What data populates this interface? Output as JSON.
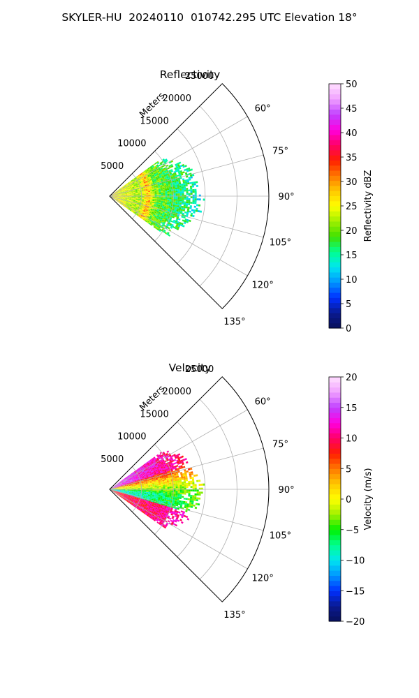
{
  "figure_title": "SKYLER-HU  20240110  010742.295 UTC Elevation 18°",
  "chart_data": [
    {
      "type": "heatmap",
      "subtype": "polar-sector",
      "title": "Reflectivity",
      "radial_axis_label": "Meters",
      "radial_ticks": [
        5000,
        10000,
        15000,
        20000,
        25000
      ],
      "radial_tick_labels": [
        "5000",
        "10000",
        "15000",
        "20000",
        "25000"
      ],
      "radial_range": [
        0,
        25000
      ],
      "angle_range_deg": [
        45,
        135
      ],
      "angle_ticks": [
        60,
        75,
        90,
        105,
        120,
        135
      ],
      "angle_tick_labels": [
        "60°",
        "75°",
        "90°",
        "105°",
        "120°",
        "135°"
      ],
      "grid": true,
      "data_extent": {
        "azimuth_deg": [
          54,
          125
        ],
        "range_m": [
          0,
          14000
        ]
      },
      "pattern": "reflectivity ~20–35 dBZ near radar with a red (~35 dBZ) ring near 5000–7000 m, decreasing to ~15 dBZ (green/cyan) beyond 10000 m",
      "colorbar": {
        "label": "Reflectivity dBZ",
        "min": 0,
        "max": 50,
        "ticks": [
          0,
          5,
          10,
          15,
          20,
          25,
          30,
          35,
          40,
          45,
          50
        ],
        "tick_labels": [
          "0",
          "5",
          "10",
          "15",
          "20",
          "25",
          "30",
          "35",
          "40",
          "45",
          "50"
        ],
        "colormap": [
          "#08105c",
          "#0a1a90",
          "#0030ff",
          "#0094ff",
          "#00e6f0",
          "#00ff90",
          "#40e000",
          "#a0f000",
          "#ffff00",
          "#ffc800",
          "#ff7800",
          "#ff1e00",
          "#ff0066",
          "#ff00e0",
          "#c040ff",
          "#f0a0ff",
          "#ffe0ff"
        ]
      }
    },
    {
      "type": "heatmap",
      "subtype": "polar-sector",
      "title": "Velocity",
      "radial_axis_label": "Meters",
      "radial_ticks": [
        5000,
        10000,
        15000,
        20000,
        25000
      ],
      "radial_tick_labels": [
        "5000",
        "10000",
        "15000",
        "20000",
        "25000"
      ],
      "radial_range": [
        0,
        25000
      ],
      "angle_range_deg": [
        45,
        135
      ],
      "angle_ticks": [
        60,
        75,
        90,
        105,
        120,
        135
      ],
      "angle_tick_labels": [
        "60°",
        "75°",
        "90°",
        "105°",
        "120°",
        "135°"
      ],
      "grid": true,
      "data_extent": {
        "azimuth_deg": [
          54,
          125
        ],
        "range_m": [
          0,
          14000
        ]
      },
      "pattern": "velocity ~+15 m/s (magenta) at northern azimuths, ~0 m/s (yellow/green) near 90°, ~-12 m/s (cyan) band near 95–105°, ~+10 m/s (red/magenta) toward southern azimuths",
      "colorbar": {
        "label": "Velocity (m/s)",
        "min": -20,
        "max": 20,
        "ticks": [
          -20,
          -15,
          -10,
          -5,
          0,
          5,
          10,
          15,
          20
        ],
        "tick_labels": [
          "−20",
          "−15",
          "−10",
          "−5",
          "0",
          "5",
          "10",
          "15",
          "20"
        ],
        "colormap": [
          "#08105c",
          "#0a1a90",
          "#0030ff",
          "#0094ff",
          "#00e6f0",
          "#00ff90",
          "#00f000",
          "#a0f000",
          "#ffff00",
          "#ffc800",
          "#ff7800",
          "#ff1e00",
          "#ff0066",
          "#ff00e0",
          "#c040ff",
          "#f0a0ff",
          "#ffe0ff"
        ]
      }
    }
  ]
}
